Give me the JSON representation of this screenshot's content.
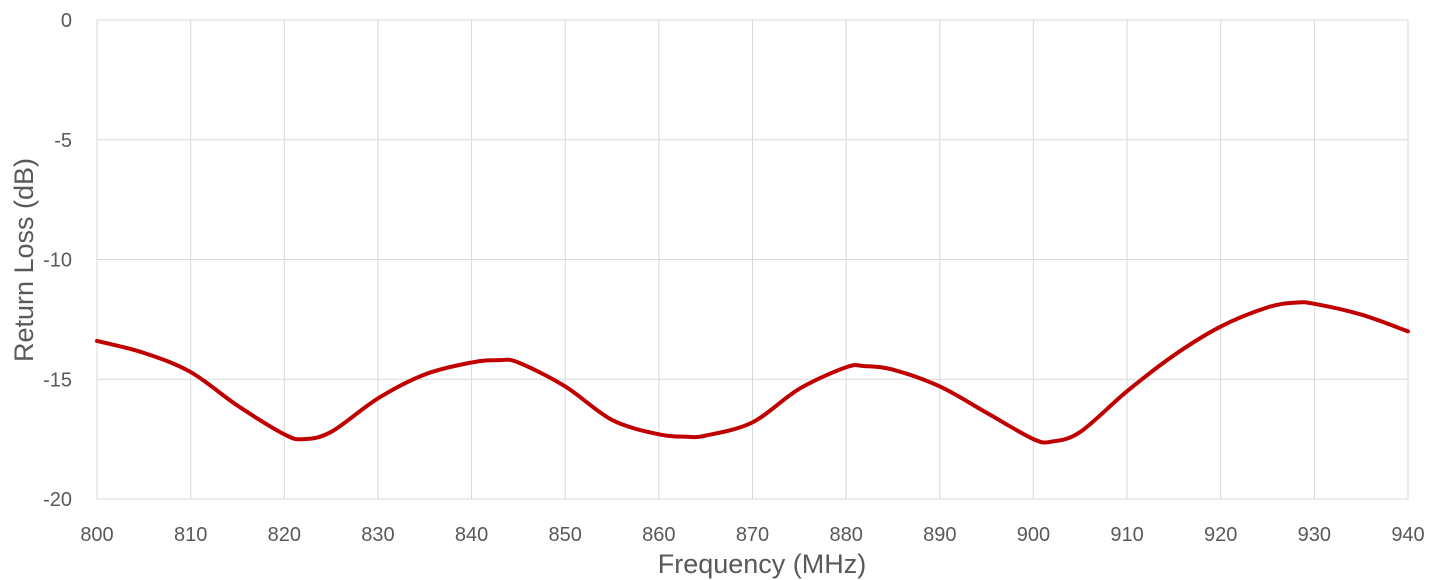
{
  "chart_data": {
    "type": "line",
    "title": "",
    "xlabel": "Frequency (MHz)",
    "ylabel": "Return Loss (dB)",
    "xlim": [
      800,
      940
    ],
    "ylim": [
      -20,
      0
    ],
    "x_ticks": [
      800,
      810,
      820,
      830,
      840,
      850,
      860,
      870,
      880,
      890,
      900,
      910,
      920,
      930,
      940
    ],
    "y_ticks": [
      0,
      -5,
      -10,
      -15,
      -20
    ],
    "grid": true,
    "legend": "none",
    "series": [
      {
        "color": "#c00000",
        "x": [
          800,
          805,
          810,
          815,
          820,
          822,
          825,
          830,
          835,
          840,
          843,
          845,
          850,
          855,
          860,
          863,
          865,
          870,
          875,
          880,
          882,
          885,
          890,
          895,
          900,
          902,
          905,
          910,
          915,
          920,
          925,
          928,
          930,
          935,
          940
        ],
        "y": [
          -13.4,
          -13.9,
          -14.7,
          -16.1,
          -17.3,
          -17.5,
          -17.2,
          -15.8,
          -14.8,
          -14.3,
          -14.2,
          -14.3,
          -15.3,
          -16.7,
          -17.3,
          -17.4,
          -17.35,
          -16.8,
          -15.4,
          -14.5,
          -14.45,
          -14.6,
          -15.3,
          -16.4,
          -17.5,
          -17.6,
          -17.2,
          -15.5,
          -14.0,
          -12.8,
          -12.0,
          -11.8,
          -11.85,
          -12.3,
          -13.0
        ]
      }
    ]
  }
}
